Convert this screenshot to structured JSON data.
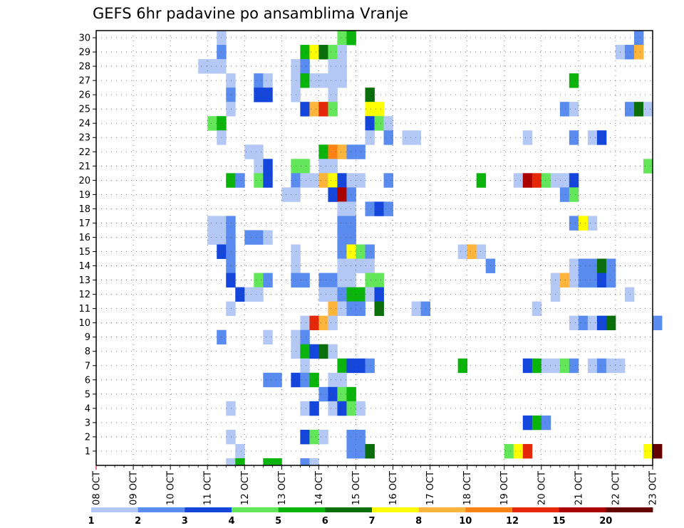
{
  "chart_data": {
    "type": "heatmap",
    "title": "GEFS 6hr padavine po ansamblima Vranje",
    "x_tick_labels": [
      "08 OCT",
      "09 OCT",
      "10 OCT",
      "11 OCT",
      "12 OCT",
      "13 OCT",
      "14 OCT",
      "15 OCT",
      "16 OCT",
      "17 OCT",
      "18 OCT",
      "19 OCT",
      "20 OCT",
      "21 OCT",
      "22 OCT",
      "23 OCT"
    ],
    "x_range": [
      "08 OCT 00Z",
      "23 OCT 00Z"
    ],
    "time_step_hours": 6,
    "y_tick_labels": [
      "1",
      "2",
      "3",
      "4",
      "5",
      "6",
      "7",
      "8",
      "9",
      "10",
      "11",
      "12",
      "13",
      "14",
      "15",
      "16",
      "17",
      "18",
      "19",
      "20",
      "21",
      "22",
      "23",
      "24",
      "25",
      "26",
      "27",
      "28",
      "29",
      "30"
    ],
    "y_range": [
      0,
      30
    ],
    "grid": true,
    "colorbar": {
      "placement": "bottom",
      "bins": [
        {
          "from": 1,
          "to": 2,
          "color": "#b4c8f5"
        },
        {
          "from": 2,
          "to": 3,
          "color": "#5a8cf0"
        },
        {
          "from": 3,
          "to": 4,
          "color": "#1446dc"
        },
        {
          "from": 4,
          "to": 5,
          "color": "#64e65a"
        },
        {
          "from": 5,
          "to": 6,
          "color": "#0ab40a"
        },
        {
          "from": 6,
          "to": 7,
          "color": "#0a6e0a"
        },
        {
          "from": 7,
          "to": 8,
          "color": "#ffff00"
        },
        {
          "from": 8,
          "to": 10,
          "color": "#ffb43c"
        },
        {
          "from": 10,
          "to": 12,
          "color": "#ff8214"
        },
        {
          "from": 12,
          "to": 15,
          "color": "#e6280a"
        },
        {
          "from": 15,
          "to": 20,
          "color": "#aa0000"
        },
        {
          "from": 20,
          "to": null,
          "color": "#640000"
        }
      ],
      "tick_labels": [
        "1",
        "2",
        "3",
        "4",
        "5",
        "6",
        "7",
        "8",
        "10",
        "12",
        "15",
        "20"
      ]
    },
    "cells_note": "each cell: [member, time index (6h steps from 08 OCT 00Z), precipitation mm]",
    "cells": [
      [
        30,
        13,
        1
      ],
      [
        30,
        26,
        4
      ],
      [
        30,
        27,
        5
      ],
      [
        30,
        58,
        2
      ],
      [
        29,
        13,
        2
      ],
      [
        29,
        22,
        5
      ],
      [
        29,
        23,
        7
      ],
      [
        29,
        24,
        6
      ],
      [
        29,
        25,
        4
      ],
      [
        29,
        26,
        1
      ],
      [
        29,
        56,
        1
      ],
      [
        29,
        57,
        2
      ],
      [
        29,
        58,
        9
      ],
      [
        28,
        11,
        1
      ],
      [
        28,
        12,
        1
      ],
      [
        28,
        13,
        1
      ],
      [
        28,
        21,
        1
      ],
      [
        28,
        22,
        2
      ],
      [
        28,
        25,
        1
      ],
      [
        28,
        26,
        1
      ],
      [
        27,
        14,
        1
      ],
      [
        27,
        17,
        2
      ],
      [
        27,
        18,
        1
      ],
      [
        27,
        21,
        1
      ],
      [
        27,
        22,
        5
      ],
      [
        27,
        23,
        1
      ],
      [
        27,
        24,
        1
      ],
      [
        27,
        25,
        1
      ],
      [
        27,
        26,
        1
      ],
      [
        27,
        51,
        5
      ],
      [
        26,
        14,
        2
      ],
      [
        26,
        17,
        3
      ],
      [
        26,
        18,
        3
      ],
      [
        26,
        21,
        1
      ],
      [
        26,
        25,
        1
      ],
      [
        26,
        29,
        6
      ],
      [
        25,
        14,
        1
      ],
      [
        25,
        22,
        3
      ],
      [
        25,
        23,
        9
      ],
      [
        25,
        24,
        12
      ],
      [
        25,
        25,
        4
      ],
      [
        25,
        29,
        7
      ],
      [
        25,
        30,
        7
      ],
      [
        25,
        50,
        2
      ],
      [
        25,
        51,
        1
      ],
      [
        25,
        57,
        2
      ],
      [
        25,
        58,
        6
      ],
      [
        25,
        59,
        1
      ],
      [
        24,
        12,
        4
      ],
      [
        24,
        13,
        5
      ],
      [
        24,
        29,
        3
      ],
      [
        24,
        30,
        4
      ],
      [
        24,
        31,
        1
      ],
      [
        23,
        13,
        1
      ],
      [
        23,
        29,
        1
      ],
      [
        23,
        31,
        2
      ],
      [
        23,
        33,
        1
      ],
      [
        23,
        34,
        1
      ],
      [
        23,
        46,
        1
      ],
      [
        23,
        51,
        2
      ],
      [
        23,
        53,
        1
      ],
      [
        23,
        54,
        3
      ],
      [
        22,
        16,
        1
      ],
      [
        22,
        17,
        1
      ],
      [
        22,
        24,
        5
      ],
      [
        22,
        25,
        10
      ],
      [
        22,
        26,
        9
      ],
      [
        22,
        27,
        2
      ],
      [
        22,
        28,
        2
      ],
      [
        21,
        17,
        1
      ],
      [
        21,
        18,
        3
      ],
      [
        21,
        21,
        4
      ],
      [
        21,
        22,
        4
      ],
      [
        21,
        24,
        1
      ],
      [
        21,
        25,
        1
      ],
      [
        21,
        59,
        4
      ],
      [
        20,
        14,
        5
      ],
      [
        20,
        15,
        2
      ],
      [
        20,
        17,
        4
      ],
      [
        20,
        18,
        3
      ],
      [
        20,
        21,
        2
      ],
      [
        20,
        22,
        1
      ],
      [
        20,
        23,
        1
      ],
      [
        20,
        24,
        9
      ],
      [
        20,
        25,
        7
      ],
      [
        20,
        26,
        3
      ],
      [
        20,
        27,
        1
      ],
      [
        20,
        28,
        1
      ],
      [
        20,
        31,
        2
      ],
      [
        20,
        41,
        5
      ],
      [
        20,
        45,
        1
      ],
      [
        20,
        46,
        15
      ],
      [
        20,
        47,
        12
      ],
      [
        20,
        48,
        4
      ],
      [
        20,
        49,
        1
      ],
      [
        20,
        50,
        1
      ],
      [
        20,
        51,
        3
      ],
      [
        19,
        20,
        1
      ],
      [
        19,
        21,
        1
      ],
      [
        19,
        25,
        3
      ],
      [
        19,
        26,
        15
      ],
      [
        19,
        27,
        2
      ],
      [
        19,
        50,
        2
      ],
      [
        19,
        51,
        4
      ],
      [
        18,
        26,
        1
      ],
      [
        18,
        27,
        1
      ],
      [
        18,
        29,
        2
      ],
      [
        18,
        30,
        3
      ],
      [
        18,
        31,
        2
      ],
      [
        17,
        12,
        1
      ],
      [
        17,
        13,
        1
      ],
      [
        17,
        14,
        2
      ],
      [
        17,
        26,
        2
      ],
      [
        17,
        27,
        2
      ],
      [
        17,
        51,
        2
      ],
      [
        17,
        52,
        7
      ],
      [
        17,
        53,
        1
      ],
      [
        16,
        12,
        1
      ],
      [
        16,
        13,
        1
      ],
      [
        16,
        14,
        2
      ],
      [
        16,
        16,
        2
      ],
      [
        16,
        17,
        2
      ],
      [
        16,
        18,
        1
      ],
      [
        16,
        26,
        2
      ],
      [
        16,
        27,
        2
      ],
      [
        15,
        13,
        3
      ],
      [
        15,
        14,
        2
      ],
      [
        15,
        21,
        1
      ],
      [
        15,
        26,
        2
      ],
      [
        15,
        27,
        7
      ],
      [
        15,
        28,
        4
      ],
      [
        15,
        29,
        2
      ],
      [
        15,
        39,
        1
      ],
      [
        15,
        40,
        9
      ],
      [
        15,
        41,
        1
      ],
      [
        14,
        14,
        2
      ],
      [
        14,
        21,
        1
      ],
      [
        14,
        26,
        1
      ],
      [
        14,
        27,
        1
      ],
      [
        14,
        28,
        1
      ],
      [
        14,
        29,
        1
      ],
      [
        14,
        42,
        2
      ],
      [
        14,
        51,
        1
      ],
      [
        14,
        52,
        2
      ],
      [
        14,
        53,
        2
      ],
      [
        14,
        54,
        6
      ],
      [
        14,
        55,
        2
      ],
      [
        13,
        14,
        3
      ],
      [
        13,
        17,
        4
      ],
      [
        13,
        18,
        2
      ],
      [
        13,
        21,
        2
      ],
      [
        13,
        22,
        2
      ],
      [
        13,
        24,
        2
      ],
      [
        13,
        25,
        2
      ],
      [
        13,
        26,
        1
      ],
      [
        13,
        27,
        1
      ],
      [
        13,
        29,
        4
      ],
      [
        13,
        30,
        4
      ],
      [
        13,
        49,
        1
      ],
      [
        13,
        50,
        9
      ],
      [
        13,
        51,
        1
      ],
      [
        13,
        52,
        2
      ],
      [
        13,
        53,
        2
      ],
      [
        13,
        54,
        3
      ],
      [
        13,
        55,
        2
      ],
      [
        12,
        15,
        3
      ],
      [
        12,
        16,
        1
      ],
      [
        12,
        17,
        1
      ],
      [
        12,
        24,
        1
      ],
      [
        12,
        25,
        1
      ],
      [
        12,
        26,
        2
      ],
      [
        12,
        27,
        5
      ],
      [
        12,
        28,
        5
      ],
      [
        12,
        29,
        1
      ],
      [
        12,
        30,
        3
      ],
      [
        12,
        49,
        1
      ],
      [
        12,
        57,
        1
      ],
      [
        11,
        14,
        1
      ],
      [
        11,
        25,
        9
      ],
      [
        11,
        26,
        1
      ],
      [
        11,
        27,
        2
      ],
      [
        11,
        28,
        2
      ],
      [
        11,
        30,
        6
      ],
      [
        11,
        34,
        1
      ],
      [
        11,
        35,
        2
      ],
      [
        11,
        47,
        1
      ],
      [
        10,
        22,
        1
      ],
      [
        10,
        23,
        12
      ],
      [
        10,
        24,
        9
      ],
      [
        10,
        25,
        1
      ],
      [
        10,
        51,
        1
      ],
      [
        10,
        52,
        2
      ],
      [
        10,
        53,
        1
      ],
      [
        10,
        54,
        3
      ],
      [
        10,
        55,
        6
      ],
      [
        10,
        60,
        2
      ],
      [
        9,
        13,
        2
      ],
      [
        9,
        18,
        1
      ],
      [
        9,
        21,
        1
      ],
      [
        9,
        22,
        2
      ],
      [
        8,
        21,
        1
      ],
      [
        8,
        22,
        5
      ],
      [
        8,
        23,
        3
      ],
      [
        8,
        24,
        6
      ],
      [
        8,
        25,
        1
      ],
      [
        7,
        22,
        1
      ],
      [
        7,
        26,
        5
      ],
      [
        7,
        27,
        3
      ],
      [
        7,
        28,
        3
      ],
      [
        7,
        29,
        2
      ],
      [
        7,
        39,
        5
      ],
      [
        7,
        46,
        3
      ],
      [
        7,
        47,
        5
      ],
      [
        7,
        48,
        1
      ],
      [
        7,
        49,
        1
      ],
      [
        7,
        50,
        4
      ],
      [
        7,
        51,
        2
      ],
      [
        7,
        53,
        1
      ],
      [
        7,
        54,
        2
      ],
      [
        7,
        55,
        1
      ],
      [
        7,
        56,
        1
      ],
      [
        6,
        18,
        2
      ],
      [
        6,
        19,
        2
      ],
      [
        6,
        21,
        3
      ],
      [
        6,
        22,
        2
      ],
      [
        6,
        23,
        5
      ],
      [
        6,
        25,
        1
      ],
      [
        6,
        26,
        1
      ],
      [
        5,
        24,
        2
      ],
      [
        5,
        25,
        3
      ],
      [
        5,
        26,
        4
      ],
      [
        5,
        27,
        5
      ],
      [
        4,
        14,
        1
      ],
      [
        4,
        22,
        1
      ],
      [
        4,
        23,
        3
      ],
      [
        4,
        25,
        1
      ],
      [
        4,
        26,
        3
      ],
      [
        4,
        27,
        4
      ],
      [
        4,
        28,
        1
      ],
      [
        3,
        46,
        3
      ],
      [
        3,
        47,
        5
      ],
      [
        3,
        48,
        2
      ],
      [
        2,
        14,
        1
      ],
      [
        2,
        22,
        3
      ],
      [
        2,
        23,
        4
      ],
      [
        2,
        24,
        1
      ],
      [
        2,
        27,
        2
      ],
      [
        2,
        28,
        2
      ],
      [
        1,
        15,
        1
      ],
      [
        1,
        27,
        2
      ],
      [
        1,
        28,
        2
      ],
      [
        1,
        29,
        6
      ],
      [
        1,
        44,
        4
      ],
      [
        1,
        45,
        7
      ],
      [
        1,
        46,
        12
      ],
      [
        1,
        59,
        7
      ],
      [
        1,
        60,
        20
      ],
      [
        0,
        14,
        1
      ],
      [
        0,
        15,
        5
      ],
      [
        0,
        18,
        5
      ],
      [
        0,
        19,
        5
      ],
      [
        0,
        22,
        2
      ],
      [
        0,
        23,
        1
      ]
    ]
  }
}
